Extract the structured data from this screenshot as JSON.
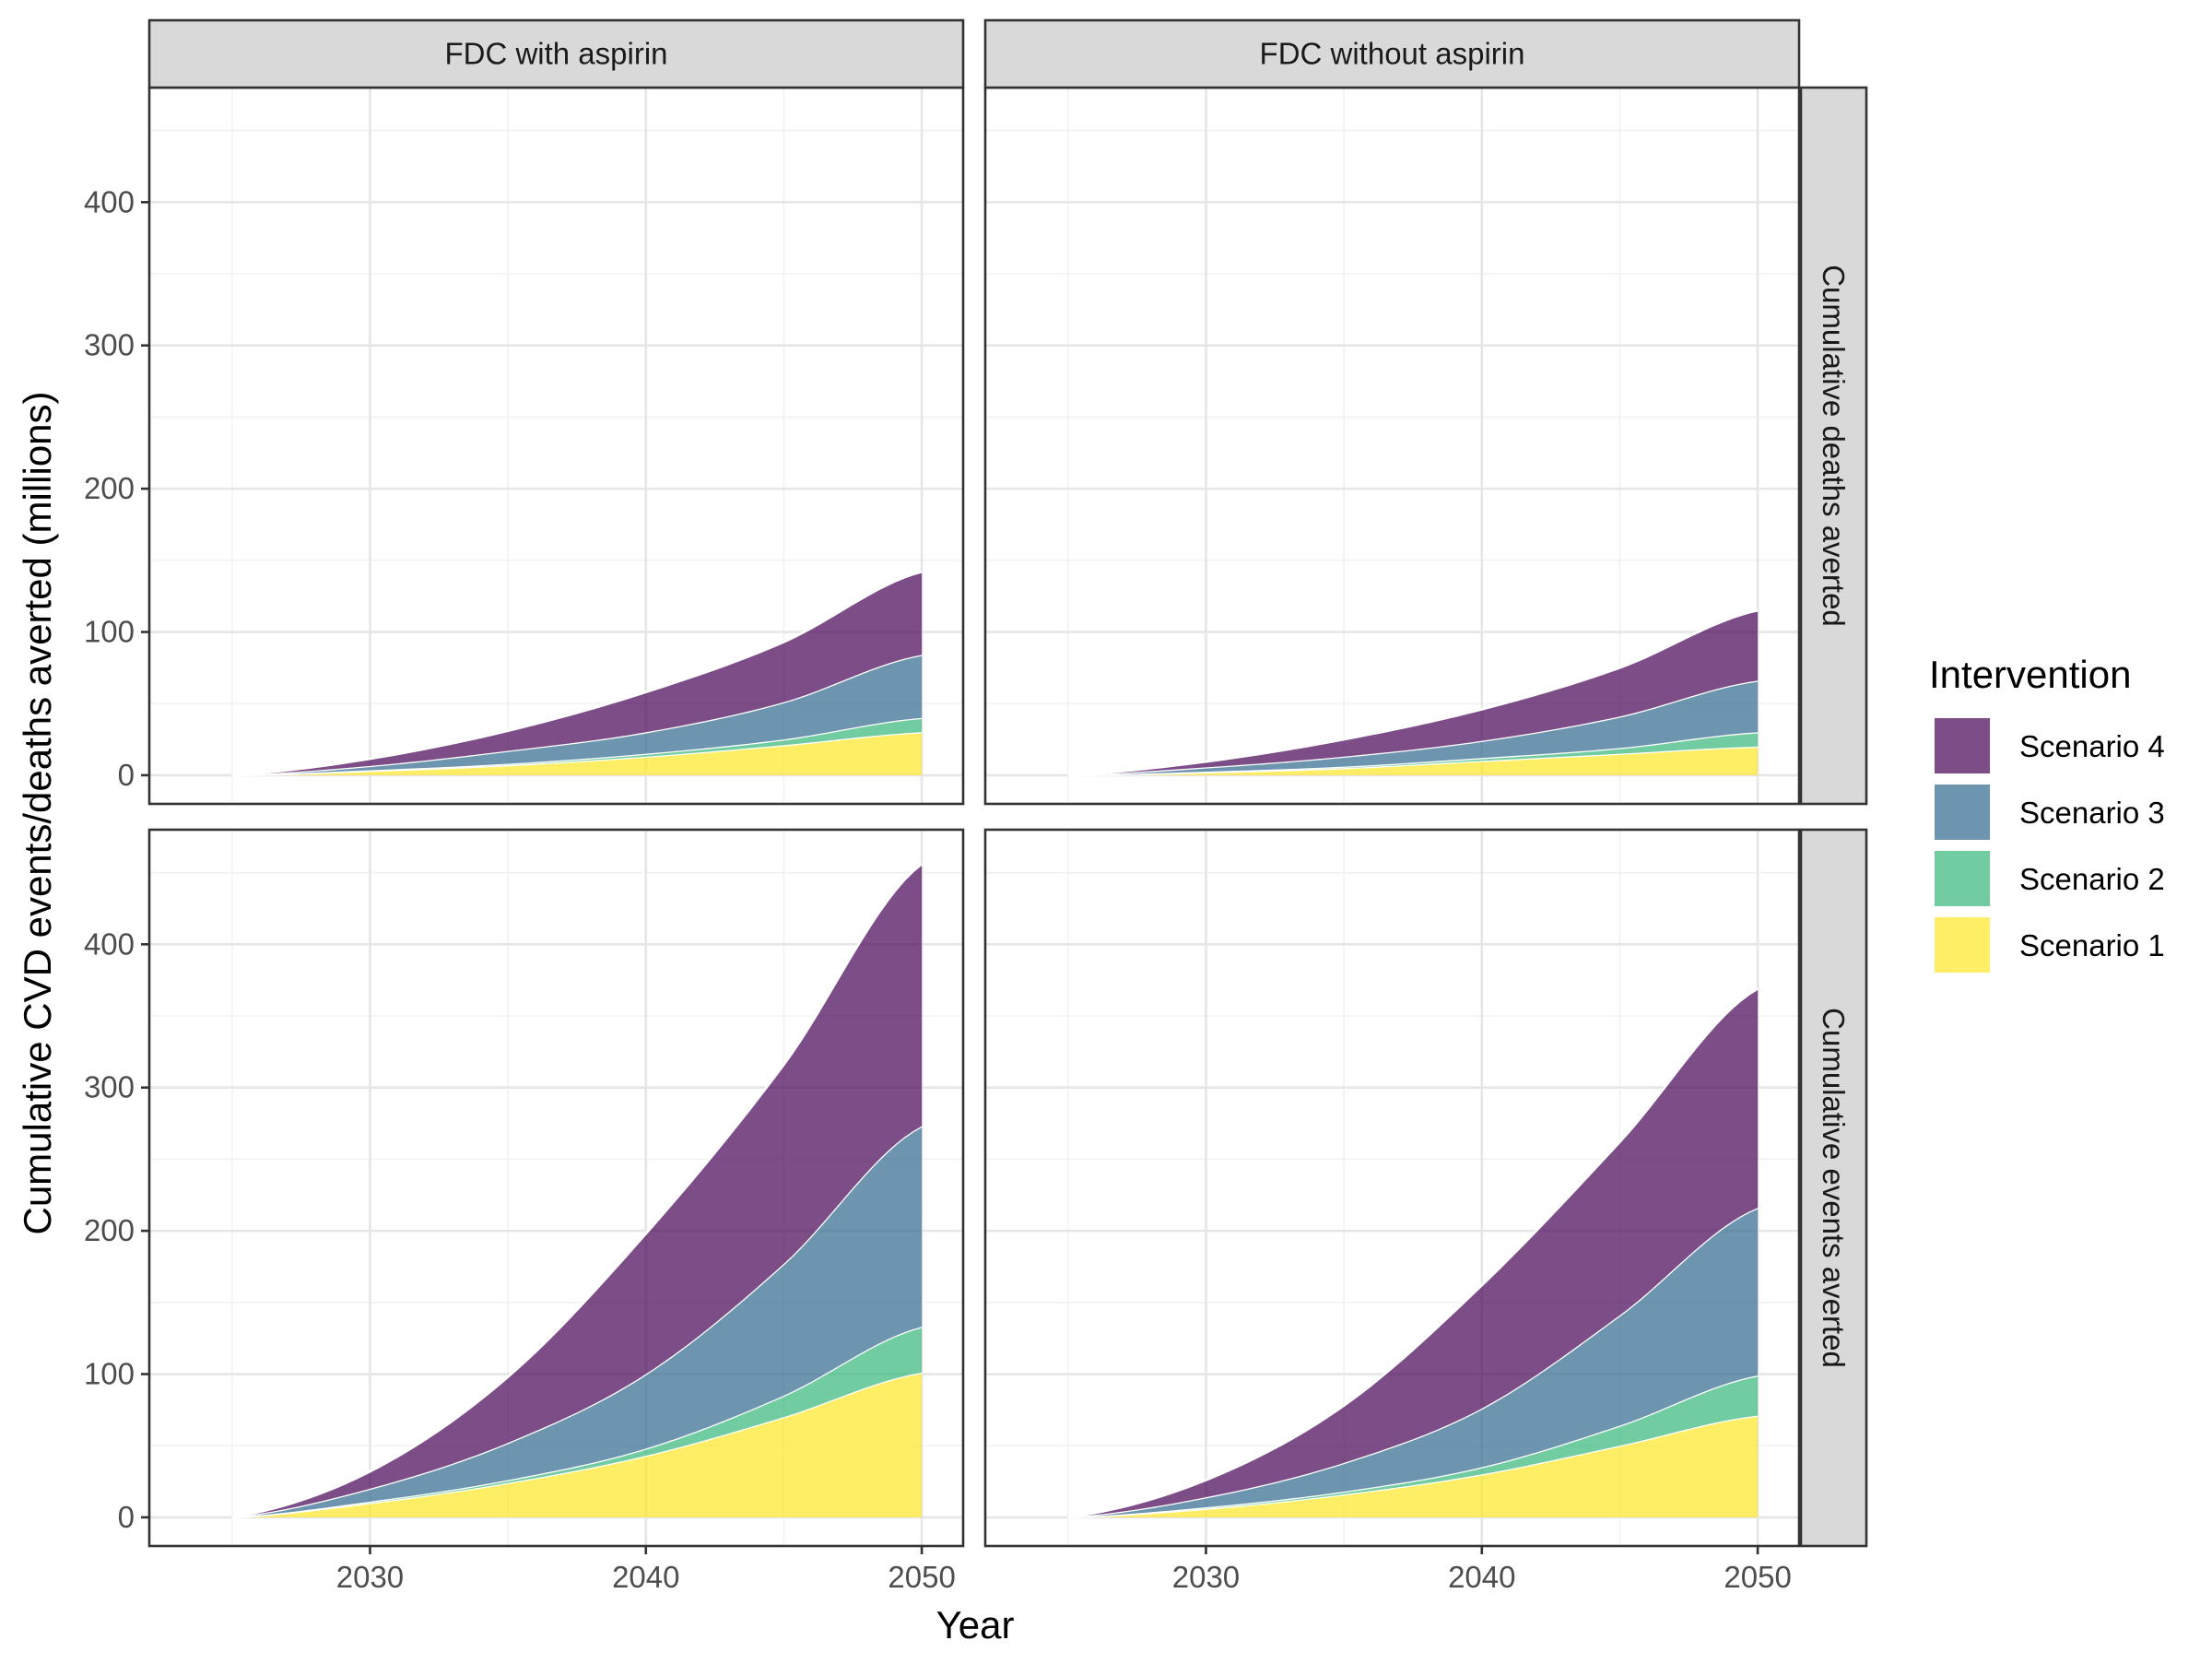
{
  "chart_data": {
    "type": "area",
    "stacked": true,
    "xlabel": "Year",
    "ylabel": "Cumulative CVD events/deaths averted (millions)",
    "xlim": [
      2022,
      2051.5
    ],
    "ylim": [
      -20,
      480
    ],
    "x_ticks": [
      2030,
      2040,
      2050
    ],
    "y_ticks": [
      0,
      100,
      200,
      300,
      400
    ],
    "x_grid_minor": [
      2025,
      2035,
      2045
    ],
    "y_grid_minor": [
      50,
      150,
      250,
      350,
      450
    ],
    "grid": true,
    "columns": [
      "FDC with aspirin",
      "FDC without aspirin"
    ],
    "rows": [
      "Cumulative deaths averted",
      "Cumulative events averted"
    ],
    "legend": {
      "title": "Intervention",
      "position": "right",
      "entries": [
        {
          "name": "Scenario 4",
          "color": "#440154"
        },
        {
          "name": "Scenario 3",
          "color": "#31688E"
        },
        {
          "name": "Scenario 2",
          "color": "#35B779"
        },
        {
          "name": "Scenario 1",
          "color": "#FDE725"
        }
      ]
    },
    "fill_opacity": 0.7,
    "x": [
      2025,
      2030,
      2035,
      2040,
      2045,
      2050
    ],
    "panels": [
      {
        "row": "Cumulative deaths averted",
        "column": "FDC with aspirin",
        "series": [
          {
            "name": "Scenario 1",
            "values": [
              0,
              3,
              7,
              13,
              21,
              30
            ]
          },
          {
            "name": "Scenario 2",
            "values": [
              0,
              0.5,
              1,
              2,
              4,
              10
            ]
          },
          {
            "name": "Scenario 3",
            "values": [
              0,
              3,
              9,
              15,
              26,
              44
            ]
          },
          {
            "name": "Scenario 4",
            "values": [
              0,
              5,
              14,
              28,
              42,
              58
            ]
          }
        ]
      },
      {
        "row": "Cumulative deaths averted",
        "column": "FDC without aspirin",
        "series": [
          {
            "name": "Scenario 1",
            "values": [
              0,
              2,
              5,
              10,
              15,
              20
            ]
          },
          {
            "name": "Scenario 2",
            "values": [
              0,
              0.5,
              1,
              2,
              4,
              10
            ]
          },
          {
            "name": "Scenario 3",
            "values": [
              0,
              3,
              7,
              12,
              22,
              36
            ]
          },
          {
            "name": "Scenario 4",
            "values": [
              0,
              4,
              12,
              22,
              34,
              49
            ]
          }
        ]
      },
      {
        "row": "Cumulative events averted",
        "column": "FDC with aspirin",
        "series": [
          {
            "name": "Scenario 1",
            "values": [
              0,
              10,
              24,
              43,
              70,
              101
            ]
          },
          {
            "name": "Scenario 2",
            "values": [
              0,
              1,
              2,
              5,
              15,
              32
            ]
          },
          {
            "name": "Scenario 3",
            "values": [
              0,
              9,
              26,
              52,
              92,
              140
            ]
          },
          {
            "name": "Scenario 4",
            "values": [
              0,
              12,
              46,
              98,
              139,
              183
            ]
          }
        ]
      },
      {
        "row": "Cumulative events averted",
        "column": "FDC without aspirin",
        "series": [
          {
            "name": "Scenario 1",
            "values": [
              0,
              6,
              16,
              30,
              50,
              71
            ]
          },
          {
            "name": "Scenario 2",
            "values": [
              0,
              1,
              2,
              5,
              14,
              28
            ]
          },
          {
            "name": "Scenario 3",
            "values": [
              0,
              7,
              20,
              41,
              77,
              117
            ]
          },
          {
            "name": "Scenario 4",
            "values": [
              0,
              12,
              40,
              86,
              121,
              153
            ]
          }
        ]
      }
    ]
  }
}
